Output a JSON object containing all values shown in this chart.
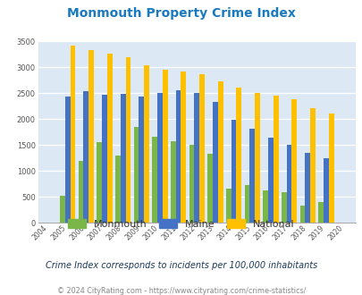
{
  "title": "Monmouth Property Crime Index",
  "subtitle": "Crime Index corresponds to incidents per 100,000 inhabitants",
  "footer": "© 2024 CityRating.com - https://www.cityrating.com/crime-statistics/",
  "years": [
    2004,
    2005,
    2006,
    2007,
    2008,
    2009,
    2010,
    2011,
    2012,
    2013,
    2014,
    2015,
    2016,
    2017,
    2018,
    2019,
    2020
  ],
  "monmouth": [
    0,
    520,
    1190,
    1550,
    1300,
    1850,
    1650,
    1575,
    1500,
    1330,
    660,
    720,
    630,
    595,
    330,
    400,
    0
  ],
  "maine": [
    0,
    2440,
    2540,
    2470,
    2480,
    2440,
    2500,
    2560,
    2510,
    2330,
    1990,
    1820,
    1640,
    1510,
    1350,
    1240,
    0
  ],
  "national": [
    0,
    3420,
    3330,
    3260,
    3200,
    3040,
    2960,
    2920,
    2870,
    2730,
    2600,
    2500,
    2460,
    2380,
    2210,
    2110,
    0
  ],
  "monmouth_color": "#7ab648",
  "maine_color": "#4472c4",
  "national_color": "#ffc000",
  "bg_color": "#dce9f5",
  "title_color": "#1a7abf",
  "subtitle_color": "#1a3a5c",
  "footer_color": "#888888",
  "ylim": [
    0,
    3500
  ],
  "yticks": [
    0,
    500,
    1000,
    1500,
    2000,
    2500,
    3000,
    3500
  ]
}
